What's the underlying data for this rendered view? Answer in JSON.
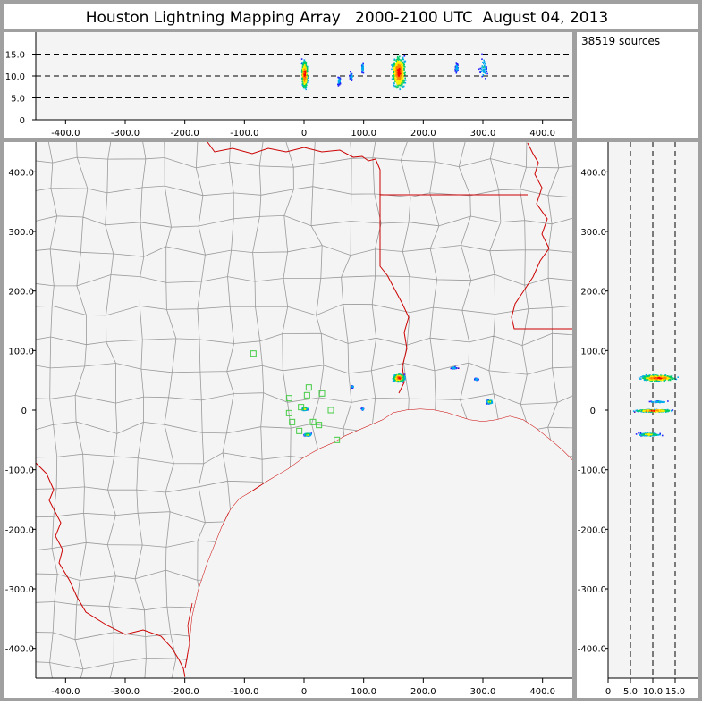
{
  "title": "Houston Lightning Mapping Array   2000-2100 UTC  August 04, 2013",
  "source_count": "38519 sources",
  "colors": {
    "border": "#a0a0a0",
    "panel_bg": "#f4f4f4",
    "county_lines": "#9a9a9a",
    "state_lines": "#cc0000",
    "station_marker": "#44cc44",
    "density_scale": [
      "#5500aa",
      "#2222ff",
      "#00aaee",
      "#00cc66",
      "#ffee00",
      "#ff8800",
      "#ff0000"
    ]
  },
  "chart_data": [
    {
      "name": "altitude-vs-east-west",
      "type": "scatter",
      "xlim": [
        -450,
        450
      ],
      "ylim": [
        0,
        20
      ],
      "x_ticks": [
        "-400.0",
        "-300.0",
        "-200.0",
        "-100.0",
        "0",
        "100.0",
        "200.0",
        "300.0",
        "400.0"
      ],
      "y_ticks": [
        "15.0",
        "10.0",
        "5.0",
        "0"
      ],
      "reference_lines": [
        5,
        10,
        15
      ],
      "clusters": [
        {
          "x": 0,
          "x_spread": 8,
          "y": 10.5,
          "y_spread": 5,
          "density": "high"
        },
        {
          "x": 58,
          "x_spread": 4,
          "y": 9,
          "y_spread": 2,
          "density": "low"
        },
        {
          "x": 78,
          "x_spread": 4,
          "y": 10,
          "y_spread": 2,
          "density": "low"
        },
        {
          "x": 97,
          "x_spread": 3,
          "y": 12,
          "y_spread": 2,
          "density": "low"
        },
        {
          "x": 158,
          "x_spread": 18,
          "y": 11,
          "y_spread": 6,
          "density": "high"
        },
        {
          "x": 255,
          "x_spread": 5,
          "y": 12,
          "y_spread": 2,
          "density": "low"
        },
        {
          "x": 300,
          "x_spread": 12,
          "y": 12,
          "y_spread": 5,
          "density": "low"
        }
      ]
    },
    {
      "name": "plan-view-map",
      "type": "scatter",
      "xlim": [
        -450,
        450
      ],
      "ylim": [
        -450,
        450
      ],
      "x_ticks": [
        "-400.0",
        "-300.0",
        "-200.0",
        "-100.0",
        "0",
        "100.0",
        "200.0",
        "300.0",
        "400.0"
      ],
      "y_ticks": [
        "400.0",
        "300.0",
        "200.0",
        "100.0",
        "0",
        "-100.0",
        "-200.0",
        "-300.0",
        "-400.0"
      ],
      "clusters": [
        {
          "x": 158,
          "x_spread": 15,
          "y": 55,
          "y_spread": 10,
          "density": "high"
        },
        {
          "x": 0,
          "x_spread": 8,
          "y": 3,
          "y_spread": 4,
          "density": "medium"
        },
        {
          "x": 5,
          "x_spread": 9,
          "y": -40,
          "y_spread": 4,
          "density": "medium"
        },
        {
          "x": 288,
          "x_spread": 7,
          "y": 53,
          "y_spread": 3,
          "density": "low"
        },
        {
          "x": 310,
          "x_spread": 8,
          "y": 15,
          "y_spread": 5,
          "density": "medium"
        },
        {
          "x": 250,
          "x_spread": 10,
          "y": 72,
          "y_spread": 3,
          "density": "low"
        },
        {
          "x": 97,
          "x_spread": 3,
          "y": 3,
          "y_spread": 3,
          "density": "low"
        },
        {
          "x": 80,
          "x_spread": 3,
          "y": 40,
          "y_spread": 3,
          "density": "low"
        }
      ],
      "stations": [
        [
          -85,
          95
        ],
        [
          -25,
          20
        ],
        [
          5,
          25
        ],
        [
          30,
          28
        ],
        [
          8,
          38
        ],
        [
          -25,
          -5
        ],
        [
          -20,
          -20
        ],
        [
          -8,
          -35
        ],
        [
          25,
          -25
        ],
        [
          45,
          0
        ],
        [
          55,
          -50
        ],
        [
          -5,
          5
        ],
        [
          15,
          -20
        ]
      ]
    },
    {
      "name": "north-south-vs-altitude",
      "type": "scatter",
      "xlim": [
        0,
        20
      ],
      "ylim": [
        -450,
        450
      ],
      "x_ticks": [
        "0",
        "5.0",
        "10.0",
        "15.0"
      ],
      "y_ticks": [
        "400.0",
        "300.0",
        "200.0",
        "100.0",
        "0",
        "-100.0",
        "-200.0",
        "-300.0",
        "-400.0"
      ],
      "reference_lines": [
        5,
        10,
        15
      ],
      "clusters": [
        {
          "y": 55,
          "y_spread": 8,
          "x": 11,
          "x_spread": 6,
          "density": "high"
        },
        {
          "y": 15,
          "y_spread": 3,
          "x": 11,
          "x_spread": 4,
          "density": "low"
        },
        {
          "y": 0,
          "y_spread": 3,
          "x": 10,
          "x_spread": 6,
          "density": "high"
        },
        {
          "y": -40,
          "y_spread": 4,
          "x": 9,
          "x_spread": 4,
          "density": "medium"
        }
      ]
    }
  ]
}
